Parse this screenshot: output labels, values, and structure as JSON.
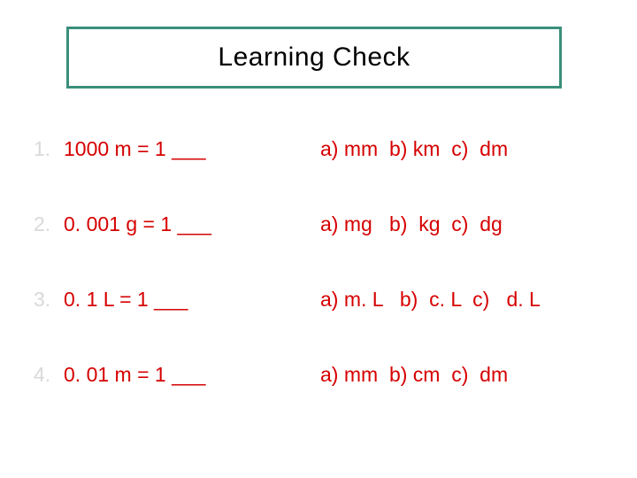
{
  "title": {
    "text": "Learning Check",
    "border_color": "#3a8f7a",
    "text_color": "#000000"
  },
  "colors": {
    "question_number": "#d9d9d9",
    "question_text": "#d60000",
    "options_text": "#d60000",
    "background": "#ffffff"
  },
  "questions": [
    {
      "number": "1.",
      "prompt": "1000 m  = 1  ___",
      "options": "a) mm  b) km  c)  dm"
    },
    {
      "number": "2.",
      "prompt": "0. 001 g = 1  ___",
      "options": "a) mg   b)  kg  c)  dg"
    },
    {
      "number": "3.",
      "prompt": "0. 1 L   =  1   ___",
      "options": "a) m. L   b)  c. L  c)   d. L"
    },
    {
      "number": "4.",
      "prompt": "0. 01 m =   1 ___",
      "options": "a) mm  b) cm  c)  dm"
    }
  ]
}
